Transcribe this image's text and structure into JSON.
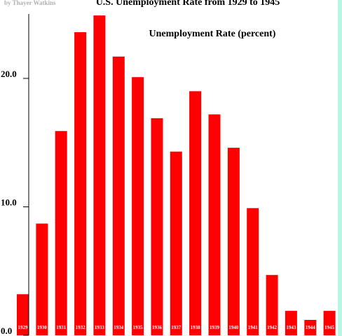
{
  "chart_data": {
    "type": "bar",
    "title": "U.S. Unemployment Rate from 1929 to 1945",
    "subtitle": "Unemployment Rate (percent)",
    "credit": "by Thayer Watkins",
    "categories": [
      "1929",
      "1930",
      "1931",
      "1932",
      "1933",
      "1934",
      "1935",
      "1936",
      "1937",
      "1938",
      "1939",
      "1940",
      "1941",
      "1942",
      "1943",
      "1944",
      "1945"
    ],
    "values": [
      3.2,
      8.7,
      15.9,
      23.6,
      24.9,
      21.7,
      20.1,
      16.9,
      14.3,
      19.0,
      17.2,
      14.6,
      9.9,
      4.7,
      1.9,
      1.2,
      1.9
    ],
    "ylim": [
      0,
      25
    ],
    "yticks": [
      0,
      10,
      20
    ],
    "ytick_labels": [
      "0.0",
      "10.0",
      "20.0"
    ],
    "bar_color": "#ff0000",
    "axis_color": "#000000",
    "label_color": "#ffffff",
    "grid": false
  }
}
